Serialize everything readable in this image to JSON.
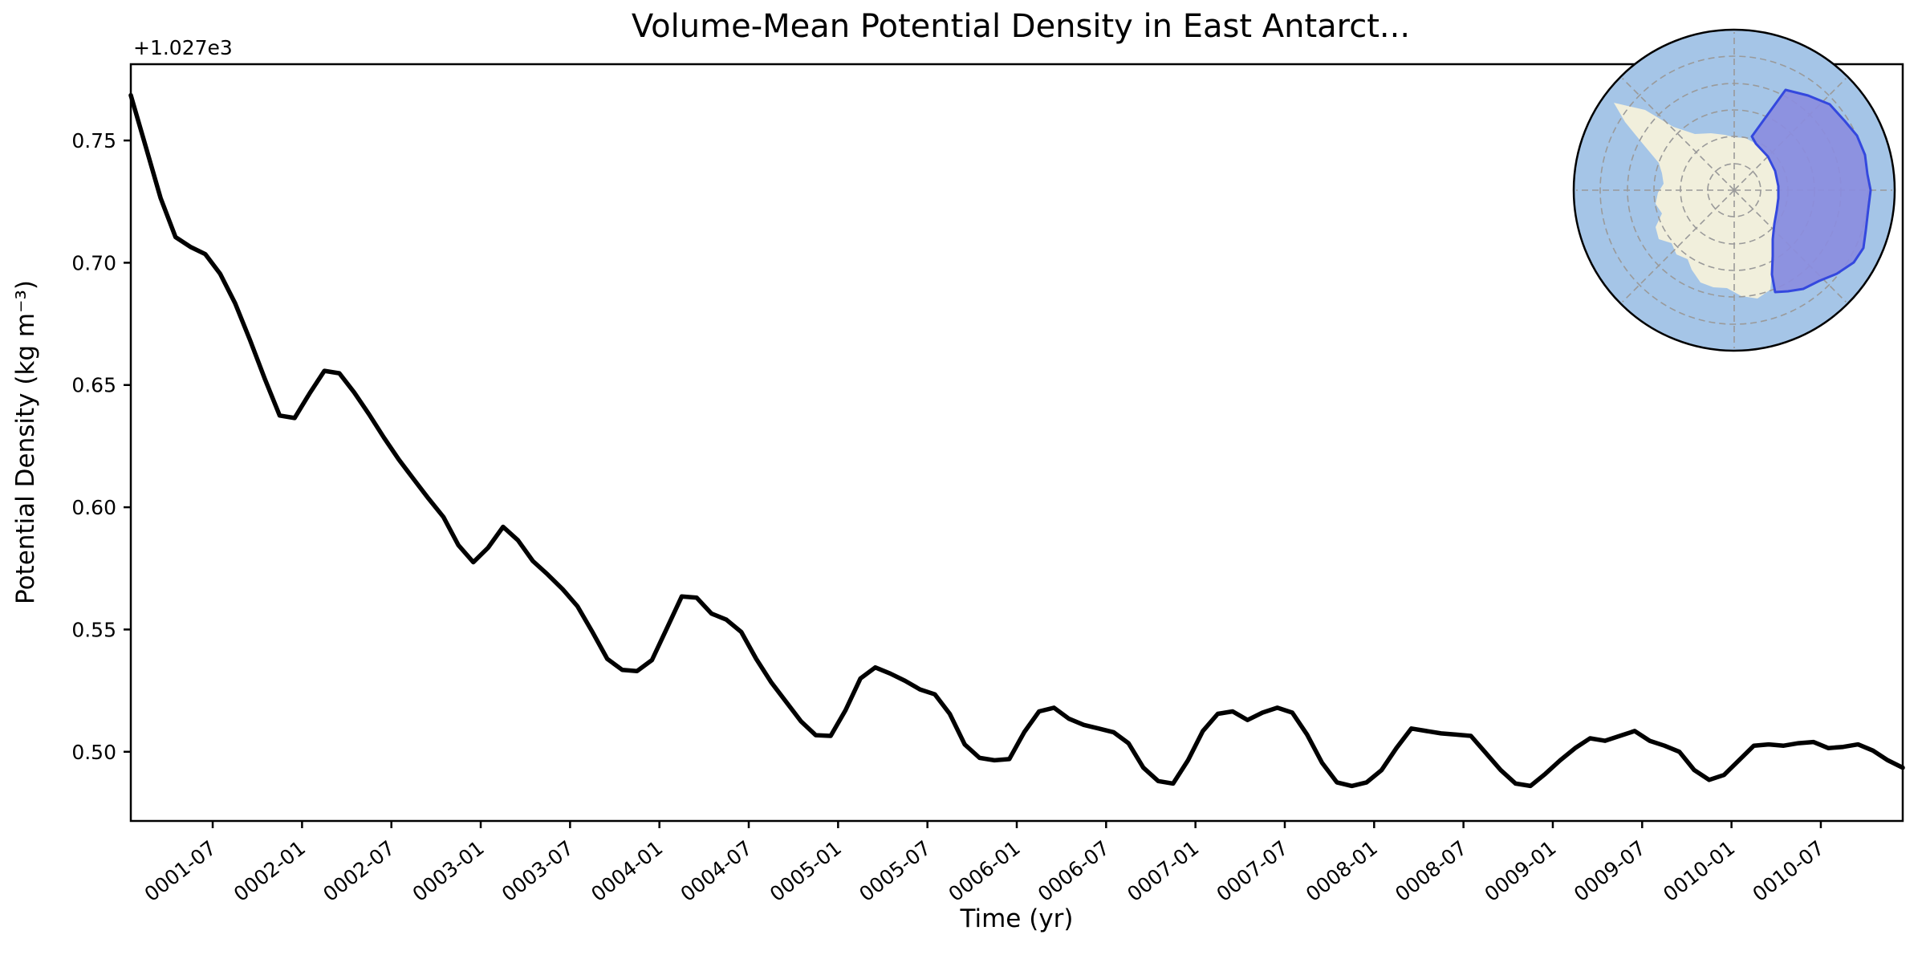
{
  "title": "Volume-Mean Potential Density in East Antarct...",
  "axes": {
    "xlabel": "Time (yr)",
    "ylabel": "Potential Density (kg m⁻³)",
    "offset_text": "+1.027e3",
    "ytick_labels": [
      "0.50",
      "0.55",
      "0.60",
      "0.65",
      "0.70",
      "0.75"
    ],
    "xtick_labels": [
      "0001-07",
      "0002-01",
      "0002-07",
      "0003-01",
      "0003-07",
      "0004-01",
      "0004-07",
      "0005-01",
      "0005-07",
      "0006-01",
      "0006-07",
      "0007-01",
      "0007-07",
      "0008-01",
      "0008-07",
      "0009-01",
      "0009-07",
      "0010-01",
      "0010-07"
    ]
  },
  "chart_data": {
    "type": "line",
    "title": "Volume-Mean Potential Density in East Antarct...",
    "xlabel": "Time (yr)",
    "ylabel": "Potential Density (kg m⁻³)",
    "y_offset_notation": "+1.027e3",
    "x_start_month": "0001-01",
    "x_end_month": "0010-12",
    "n_points": 120,
    "x_frequency": "monthly",
    "ylim": [
      1027.4717,
      1027.7812
    ],
    "yticks": [
      1027.5,
      1027.55,
      1027.6,
      1027.65,
      1027.7,
      1027.75
    ],
    "grid": false,
    "legend": "none",
    "line_color": "#000000",
    "line_width": 5.5,
    "values": [
      1027.7685,
      1027.7475,
      1027.7265,
      1027.7105,
      1027.7065,
      1027.7035,
      1027.6955,
      1027.6835,
      1027.6685,
      1027.6525,
      1027.6375,
      1027.6365,
      1027.6465,
      1027.6558,
      1027.6548,
      1027.647,
      1027.638,
      1027.6285,
      1027.6195,
      1027.6115,
      1027.6035,
      1027.596,
      1027.5845,
      1027.5775,
      1027.5835,
      1027.592,
      1027.5865,
      1027.578,
      1027.5725,
      1027.5665,
      1027.5595,
      1027.549,
      1027.538,
      1027.5335,
      1027.533,
      1027.5375,
      1027.5505,
      1027.5635,
      1027.563,
      1027.5565,
      1027.554,
      1027.549,
      1027.538,
      1027.5285,
      1027.5205,
      1027.5125,
      1027.5068,
      1027.5065,
      1027.517,
      1027.53,
      1027.5345,
      1027.532,
      1027.529,
      1027.5255,
      1027.5235,
      1027.5155,
      1027.503,
      1027.4975,
      1027.4965,
      1027.497,
      1027.508,
      1027.5165,
      1027.518,
      1027.5135,
      1027.511,
      1027.5095,
      1027.508,
      1027.5035,
      1027.4935,
      1027.488,
      1027.487,
      1027.4965,
      1027.5085,
      1027.5155,
      1027.5165,
      1027.513,
      1027.516,
      1027.518,
      1027.516,
      1027.507,
      1027.4955,
      1027.4875,
      1027.486,
      1027.4875,
      1027.4925,
      1027.5015,
      1027.5095,
      1027.5085,
      1027.5075,
      1027.507,
      1027.5065,
      1027.4995,
      1027.4925,
      1027.487,
      1027.486,
      1027.491,
      1027.4965,
      1027.5015,
      1027.5055,
      1027.5045,
      1027.5065,
      1027.5085,
      1027.5045,
      1027.5025,
      1027.5,
      1027.4925,
      1027.4885,
      1027.4905,
      1027.4965,
      1027.5025,
      1027.503,
      1027.5025,
      1027.5035,
      1027.504,
      1027.5015,
      1027.502,
      1027.503,
      1027.5005,
      1027.4965,
      1027.4935
    ]
  },
  "inset_map": {
    "projection": "south-polar-stereographic",
    "highlighted_region": "East Antarctic shelf sector",
    "colors": {
      "ocean": "#a5c5e7",
      "land": "#f1efdc",
      "region_fill": "#8b8ddf",
      "region_edge": "#3448de",
      "graticule": "#9a9a9a",
      "circle_edge": "#000000"
    }
  }
}
